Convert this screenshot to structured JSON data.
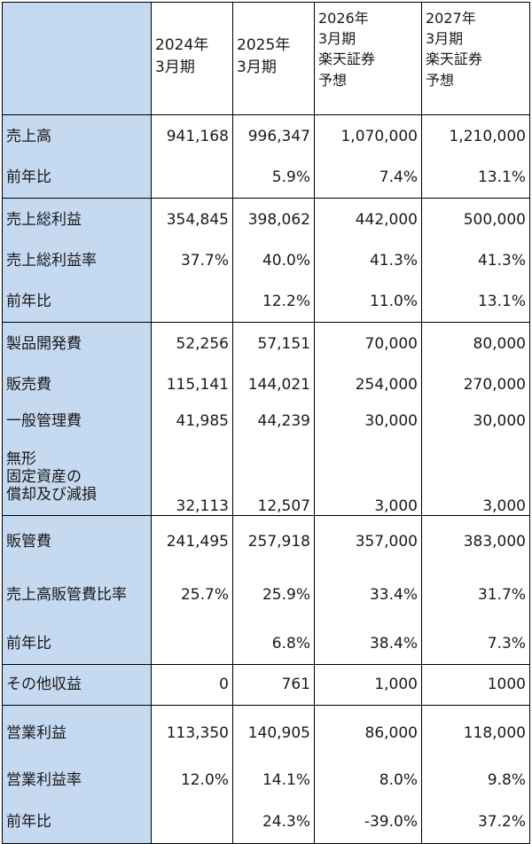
{
  "columns": {
    "c1": [
      "2024年",
      "3月期"
    ],
    "c2": [
      "2025年",
      "3月期"
    ],
    "c3": [
      "2026年",
      "3月期",
      "楽天証券",
      "予想"
    ],
    "c4": [
      "2027年",
      "3月期",
      "楽天証券",
      "予想"
    ]
  },
  "rows": {
    "sales": {
      "label": "売上高",
      "v": [
        "941,168",
        "996,347",
        "1,070,000",
        "1,210,000"
      ]
    },
    "sales_yoy": {
      "label": "前年比",
      "v": [
        "",
        "5.9%",
        "7.4%",
        "13.1%"
      ]
    },
    "gross": {
      "label": "売上総利益",
      "v": [
        "354,845",
        "398,062",
        "442,000",
        "500,000"
      ]
    },
    "gross_margin": {
      "label": "売上総利益率",
      "v": [
        "37.7%",
        "40.0%",
        "41.3%",
        "41.3%"
      ]
    },
    "gross_yoy": {
      "label": "前年比",
      "v": [
        "",
        "12.2%",
        "11.0%",
        "13.1%"
      ]
    },
    "rnd": {
      "label": "製品開発費",
      "v": [
        "52,256",
        "57,151",
        "70,000",
        "80,000"
      ]
    },
    "selling": {
      "label": "販売費",
      "v": [
        "115,141",
        "144,021",
        "254,000",
        "270,000"
      ]
    },
    "admin": {
      "label": "一般管理費",
      "v": [
        "41,985",
        "44,239",
        "30,000",
        "30,000"
      ]
    },
    "amort": {
      "label": [
        "無形",
        "固定資産の",
        "償却及び減損"
      ],
      "v": [
        "32,113",
        "12,507",
        "3,000",
        "3,000"
      ]
    },
    "sga": {
      "label": "販管費",
      "v": [
        "241,495",
        "257,918",
        "357,000",
        "383,000"
      ]
    },
    "sga_ratio": {
      "label": "売上高販管費比率",
      "v": [
        "25.7%",
        "25.9%",
        "33.4%",
        "31.7%"
      ]
    },
    "sga_yoy": {
      "label": "前年比",
      "v": [
        "",
        "6.8%",
        "38.4%",
        "7.3%"
      ]
    },
    "other_income": {
      "label": "その他収益",
      "v": [
        "0",
        "761",
        "1,000",
        "1000"
      ]
    },
    "op": {
      "label": "営業利益",
      "v": [
        "113,350",
        "140,905",
        "86,000",
        "118,000"
      ]
    },
    "op_margin": {
      "label": "営業利益率",
      "v": [
        "12.0%",
        "14.1%",
        "8.0%",
        "9.8%"
      ]
    },
    "op_yoy": {
      "label": "前年比",
      "v": [
        "",
        "24.3%",
        "-39.0%",
        "37.2%"
      ]
    }
  }
}
